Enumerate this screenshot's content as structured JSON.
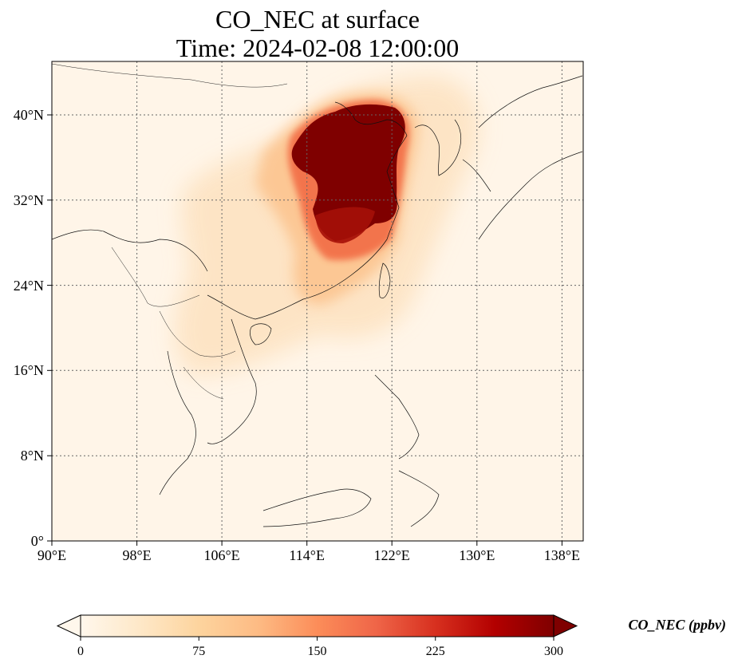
{
  "title": "CO_NEC at surface",
  "subtitle": "Time: 2024-02-08 12:00:00",
  "map": {
    "lon_range": [
      90,
      140
    ],
    "lat_range": [
      0,
      45
    ],
    "lon_ticks": [
      "90°E",
      "98°E",
      "106°E",
      "114°E",
      "122°E",
      "130°E",
      "138°E"
    ],
    "lat_ticks": [
      "0°",
      "8°N",
      "16°N",
      "24°N",
      "32°N",
      "40°N"
    ],
    "gridlines": true
  },
  "colorbar": {
    "label": "CO_NEC (ppbv)",
    "ticks": [
      "0",
      "75",
      "150",
      "225",
      "300"
    ],
    "range": [
      0,
      300
    ],
    "extend": "both",
    "colormap": "OrRd",
    "colors": [
      "#fff7ec",
      "#fee8c8",
      "#fdd49e",
      "#fdbb84",
      "#fc8d59",
      "#ef6548",
      "#d7301f",
      "#b30000",
      "#7f0000"
    ]
  }
}
